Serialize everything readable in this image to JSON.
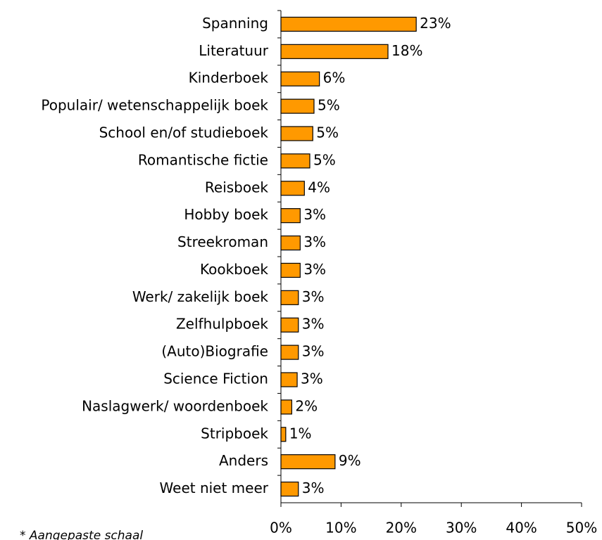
{
  "chart_data": {
    "type": "barh",
    "categories": [
      "Spanning",
      "Literatuur",
      "Kinderboek",
      "Populair/ wetenschappelijk boek",
      "School en/of studieboek",
      "Romantische fictie",
      "Reisboek",
      "Hobby boek",
      "Streekroman",
      "Kookboek",
      "Werk/ zakelijk boek",
      "Zelfhulpboek",
      "(Auto)Biografie",
      "Science Fiction",
      "Naslagwerk/ woordenboek",
      "Stripboek",
      "Anders",
      "Weet niet meer"
    ],
    "values": [
      22.5,
      17.8,
      6.4,
      5.5,
      5.3,
      4.8,
      3.9,
      3.2,
      3.2,
      3.2,
      2.9,
      2.9,
      2.9,
      2.7,
      1.8,
      0.8,
      9.0,
      2.9
    ],
    "value_labels": [
      "23%",
      "18%",
      "6%",
      "5%",
      "5%",
      "5%",
      "4%",
      "3%",
      "3%",
      "3%",
      "3%",
      "3%",
      "3%",
      "3%",
      "2%",
      "1%",
      "9%",
      "3%"
    ],
    "color": "#ff9900",
    "xlim": [
      0,
      50
    ],
    "xticks": [
      {
        "value": 0,
        "label": "0%"
      },
      {
        "value": 10,
        "label": "10%"
      },
      {
        "value": 20,
        "label": "20%"
      },
      {
        "value": 30,
        "label": "30%"
      },
      {
        "value": 40,
        "label": "40%"
      },
      {
        "value": 50,
        "label": "50%"
      }
    ],
    "annotation": "* Aangepaste schaal"
  }
}
